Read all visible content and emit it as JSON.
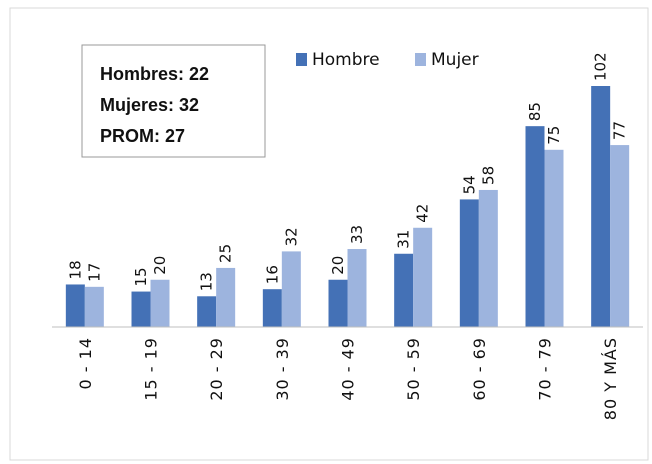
{
  "chart_data": {
    "type": "bar",
    "annotations": [
      "Hombres: 22",
      "Mujeres: 32",
      "PROM: 27"
    ],
    "categories": [
      "0 - 14",
      "15 - 19",
      "20 - 29",
      "30 - 39",
      "40 - 49",
      "50 - 59",
      "60 - 69",
      "70 - 79",
      "80 Y MÁS"
    ],
    "series": [
      {
        "name": "Hombre",
        "color": "#4471b6",
        "values": [
          18,
          15,
          13,
          16,
          20,
          31,
          54,
          85,
          102
        ]
      },
      {
        "name": "Mujer",
        "color": "#9db4de",
        "values": [
          17,
          20,
          25,
          32,
          33,
          42,
          58,
          75,
          77
        ]
      }
    ],
    "legend": "top"
  }
}
